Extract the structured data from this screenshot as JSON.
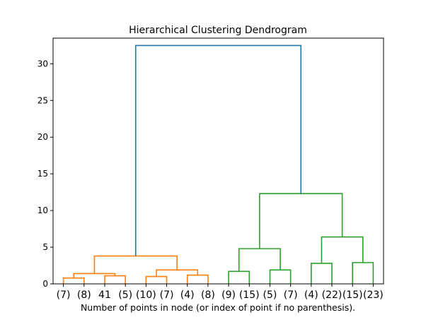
{
  "chart_data": {
    "type": "dendrogram",
    "title": "Hierarchical Clustering Dendrogram",
    "xlabel": "Number of points in node (or index of point if no parenthesis).",
    "ylabel": "",
    "ylim": [
      0,
      33.5
    ],
    "yticks": [
      0,
      5,
      10,
      15,
      20,
      25,
      30
    ],
    "grid": false,
    "leaf_labels": [
      "(7)",
      "(8)",
      "41",
      "(5)",
      "(10)",
      "(7)",
      "(4)",
      "(8)",
      "(9)",
      "(15)",
      "(5)",
      "(7)",
      "(4)",
      "(22)",
      "(15)",
      "(23)"
    ],
    "colors": {
      "above_threshold": "#1f77b4",
      "cluster_1": "#ff7f0e",
      "cluster_2": "#2ca02c"
    },
    "merges": [
      {
        "id": "a",
        "left": 0,
        "right": 1,
        "height": 0.8,
        "color": "cluster_1"
      },
      {
        "id": "b",
        "left": 2,
        "right": 3,
        "height": 1.1,
        "color": "cluster_1"
      },
      {
        "id": "c",
        "left": "a",
        "right": "b",
        "height": 1.4,
        "color": "cluster_1"
      },
      {
        "id": "d",
        "left": 4,
        "right": 5,
        "height": 1.0,
        "color": "cluster_1"
      },
      {
        "id": "e",
        "left": 6,
        "right": 7,
        "height": 1.2,
        "color": "cluster_1"
      },
      {
        "id": "f",
        "left": "d",
        "right": "e",
        "height": 1.9,
        "color": "cluster_1"
      },
      {
        "id": "g",
        "left": "c",
        "right": "f",
        "height": 3.8,
        "color": "cluster_1"
      },
      {
        "id": "h",
        "left": 8,
        "right": 9,
        "height": 1.7,
        "color": "cluster_2"
      },
      {
        "id": "i",
        "left": 10,
        "right": 11,
        "height": 1.9,
        "color": "cluster_2"
      },
      {
        "id": "j",
        "left": "h",
        "right": "i",
        "height": 4.8,
        "color": "cluster_2"
      },
      {
        "id": "k",
        "left": 12,
        "right": 13,
        "height": 2.8,
        "color": "cluster_2"
      },
      {
        "id": "l",
        "left": 14,
        "right": 15,
        "height": 2.9,
        "color": "cluster_2"
      },
      {
        "id": "m",
        "left": "k",
        "right": "l",
        "height": 6.4,
        "color": "cluster_2"
      },
      {
        "id": "n",
        "left": "j",
        "right": "m",
        "height": 12.3,
        "color": "cluster_2"
      },
      {
        "id": "root",
        "left": "g",
        "right": "n",
        "height": 32.5,
        "color": "above_threshold"
      }
    ]
  }
}
